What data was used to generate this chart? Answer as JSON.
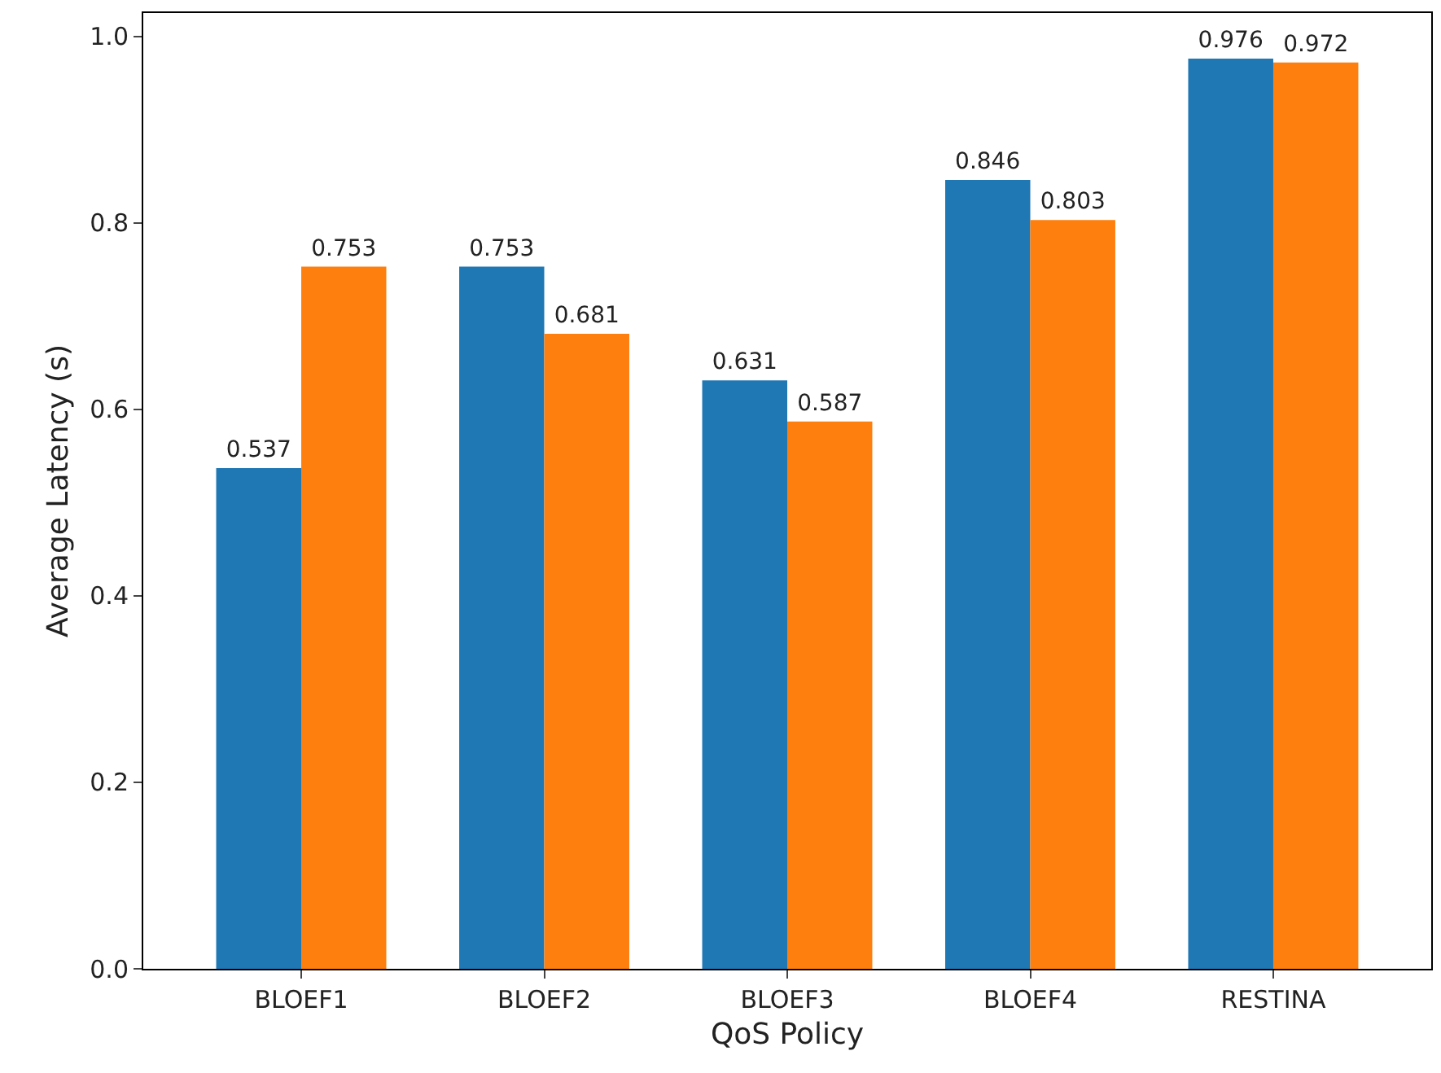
{
  "chart_data": {
    "type": "bar",
    "xlabel": "QoS Policy",
    "ylabel": "Average Latency (s)",
    "categories": [
      "BLOEF1",
      "BLOEF2",
      "BLOEF3",
      "BLOEF4",
      "RESTINA"
    ],
    "series": [
      {
        "color": "#1f77b4",
        "values": [
          0.537,
          0.753,
          0.631,
          0.846,
          0.976
        ]
      },
      {
        "color": "#ff7f0e",
        "values": [
          0.753,
          0.681,
          0.587,
          0.803,
          0.972
        ]
      }
    ],
    "ylim": [
      0,
      1.025
    ],
    "yticks": [
      {
        "value": 0,
        "label": "0.0"
      },
      0.2,
      0.4,
      0.6,
      0.8,
      {
        "value": 1,
        "label": "1.0"
      }
    ],
    "data_labels": true
  }
}
